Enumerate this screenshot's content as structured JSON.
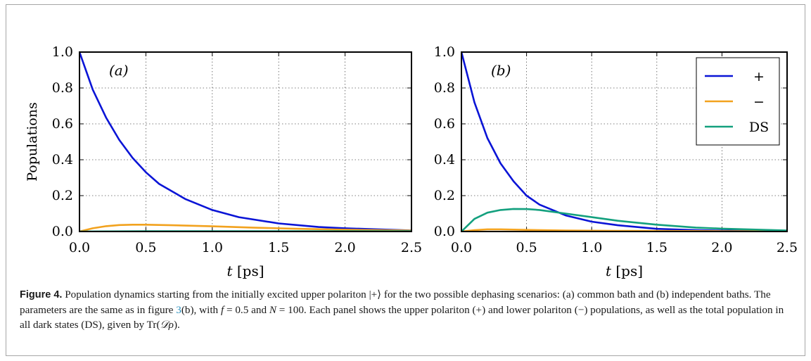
{
  "chart_data": [
    {
      "type": "line",
      "panel_label": "(a)",
      "xlabel": "t [ps]",
      "ylabel": "Populations",
      "xlim": [
        0,
        2.5
      ],
      "ylim": [
        0,
        1
      ],
      "xticks": [
        "0.0",
        "0.5",
        "1.0",
        "1.5",
        "2.0",
        "2.5"
      ],
      "yticks": [
        "0.0",
        "0.2",
        "0.4",
        "0.6",
        "0.8",
        "1.0"
      ],
      "grid": "dotted",
      "legend": "none",
      "series": [
        {
          "name": "+",
          "color": "#0a14d6",
          "x": [
            0,
            0.1,
            0.2,
            0.3,
            0.4,
            0.5,
            0.6,
            0.8,
            1.0,
            1.2,
            1.5,
            1.8,
            2.0,
            2.5
          ],
          "y": [
            1.0,
            0.79,
            0.635,
            0.51,
            0.41,
            0.33,
            0.265,
            0.18,
            0.12,
            0.08,
            0.045,
            0.025,
            0.018,
            0.006
          ]
        },
        {
          "name": "−",
          "color": "#f2a21e",
          "x": [
            0,
            0.1,
            0.2,
            0.3,
            0.4,
            0.5,
            0.7,
            1.0,
            1.3,
            1.6,
            2.0,
            2.5
          ],
          "y": [
            0,
            0.018,
            0.03,
            0.036,
            0.038,
            0.038,
            0.035,
            0.029,
            0.022,
            0.016,
            0.01,
            0.005
          ]
        },
        {
          "name": "DS",
          "color": "#13a07e",
          "x": [
            0,
            0.5,
            1.0,
            1.5,
            2.0,
            2.5
          ],
          "y": [
            0.0,
            0.002,
            0.002,
            0.002,
            0.002,
            0.002
          ]
        }
      ]
    },
    {
      "type": "line",
      "panel_label": "(b)",
      "xlabel": "t [ps]",
      "ylabel": "",
      "xlim": [
        0,
        2.5
      ],
      "ylim": [
        0,
        1
      ],
      "xticks": [
        "0.0",
        "0.5",
        "1.0",
        "1.5",
        "2.0",
        "2.5"
      ],
      "yticks": [
        "0.0",
        "0.2",
        "0.4",
        "0.6",
        "0.8",
        "1.0"
      ],
      "grid": "dotted",
      "legend": "top-right",
      "series": [
        {
          "name": "+",
          "color": "#0a14d6",
          "x": [
            0,
            0.1,
            0.2,
            0.3,
            0.4,
            0.5,
            0.6,
            0.8,
            1.0,
            1.2,
            1.5,
            1.8,
            2.0,
            2.5
          ],
          "y": [
            1.0,
            0.72,
            0.52,
            0.38,
            0.28,
            0.2,
            0.15,
            0.09,
            0.055,
            0.035,
            0.015,
            0.008,
            0.005,
            0.002
          ]
        },
        {
          "name": "−",
          "color": "#f2a21e",
          "x": [
            0,
            0.1,
            0.2,
            0.3,
            0.5,
            0.8,
            1.2,
            1.6,
            2.0,
            2.5
          ],
          "y": [
            0,
            0.008,
            0.012,
            0.012,
            0.009,
            0.006,
            0.004,
            0.003,
            0.002,
            0.001
          ]
        },
        {
          "name": "DS",
          "color": "#13a07e",
          "x": [
            0,
            0.1,
            0.2,
            0.3,
            0.4,
            0.5,
            0.6,
            0.8,
            1.0,
            1.2,
            1.5,
            1.8,
            2.0,
            2.5
          ],
          "y": [
            0,
            0.07,
            0.105,
            0.12,
            0.126,
            0.125,
            0.12,
            0.1,
            0.08,
            0.06,
            0.038,
            0.022,
            0.016,
            0.006
          ]
        }
      ]
    }
  ],
  "caption": {
    "label": "Figure 4.",
    "part1": " Population dynamics starting from the initially excited upper polariton |+⟩ for the two possible dephasing scenarios: (a) common bath and (b) independent baths. The parameters are the same as in figure ",
    "ref": "3",
    "part2": "(b), with ",
    "f_sym": "f",
    "f_val": " = 0.5 and ",
    "n_sym": "N",
    "n_val": " = 100. Each panel shows the upper polariton (+) and lower polariton (−) populations, as well as the total population in all dark states (DS), given by Tr(",
    "d_sym": "𝒟ρ",
    "end": ")."
  }
}
